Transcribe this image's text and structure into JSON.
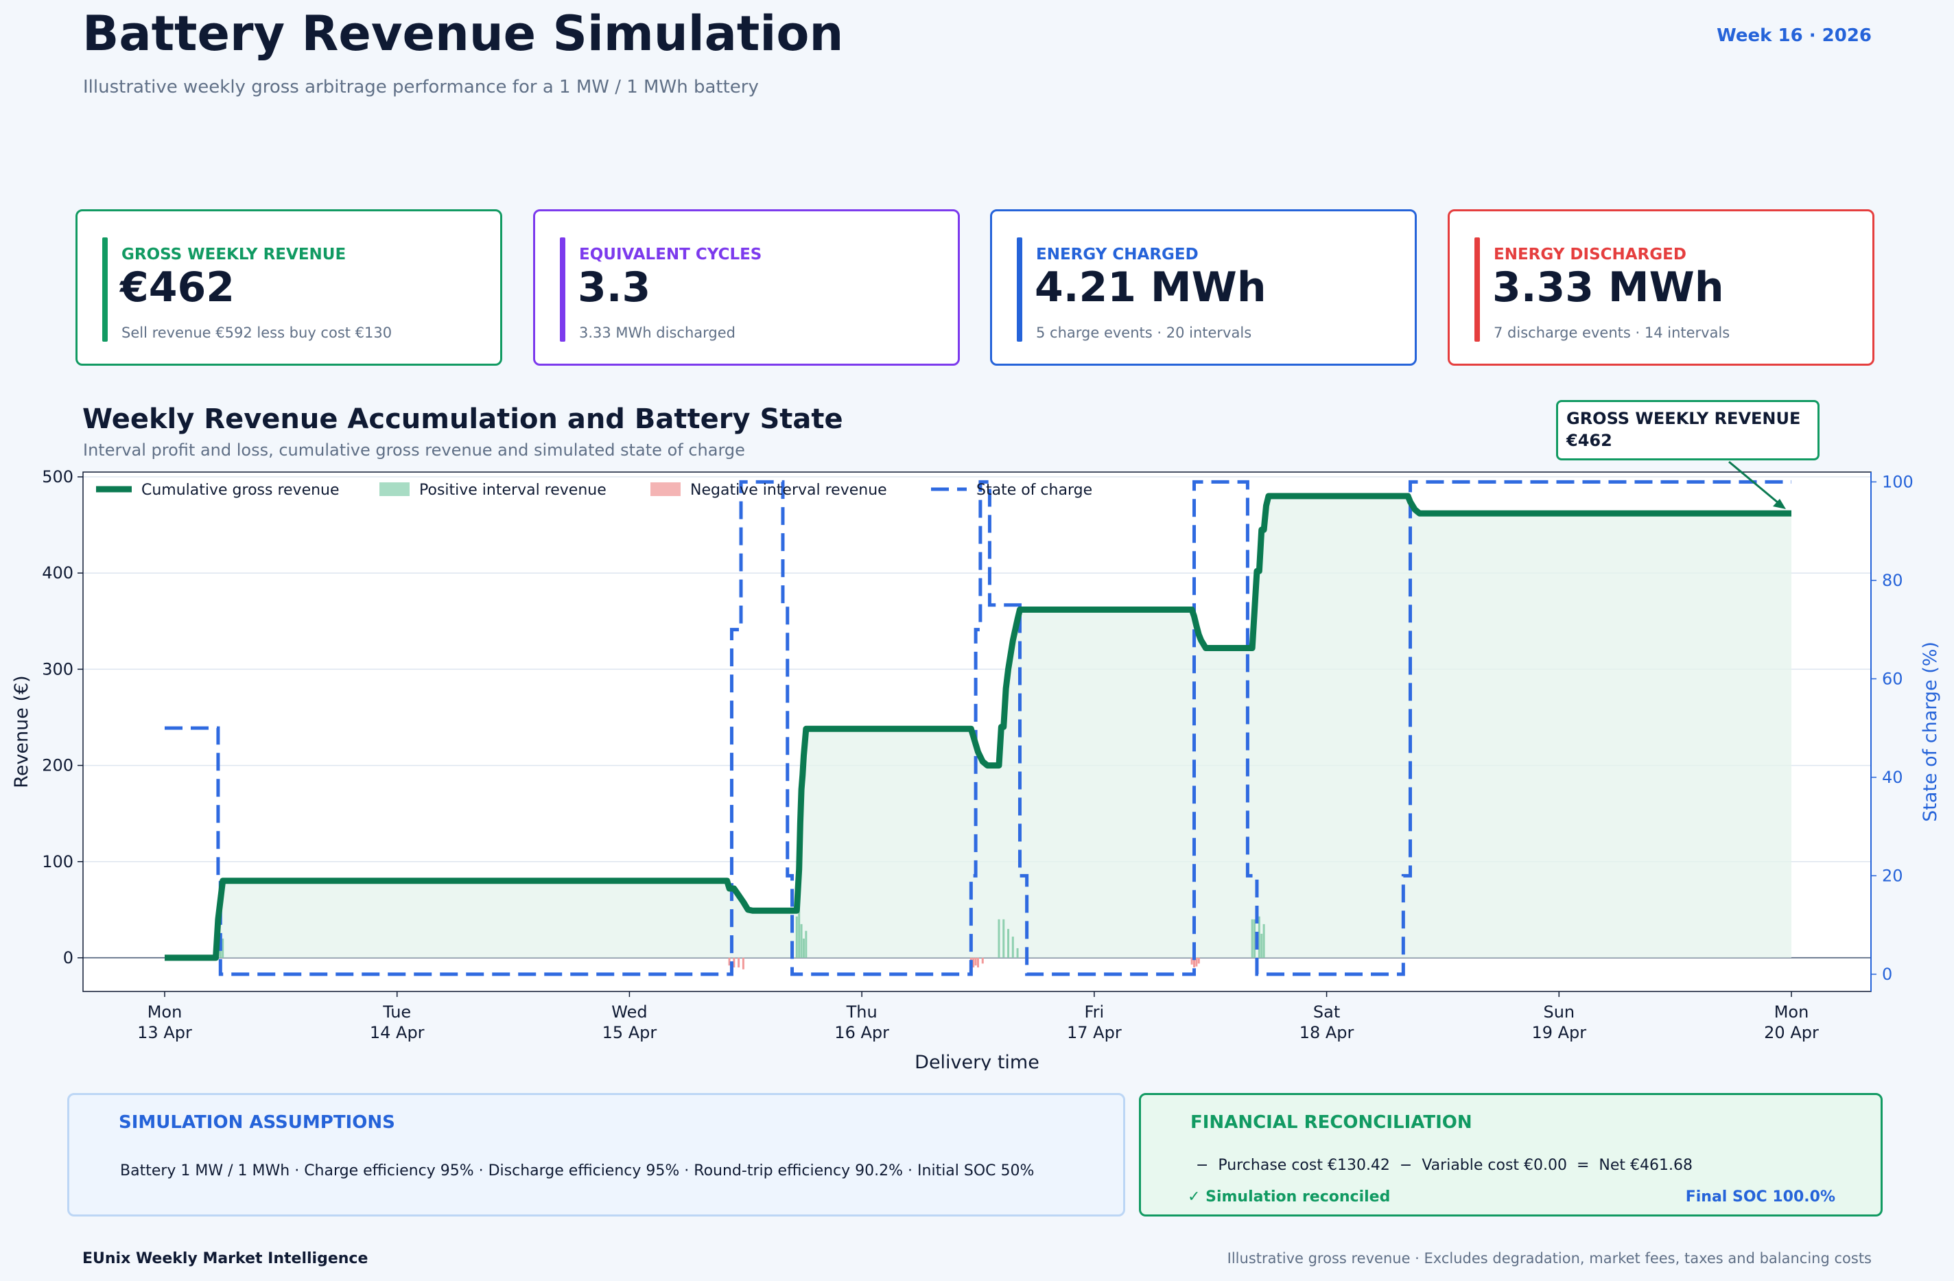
{
  "header": {
    "title": "Battery Revenue Simulation",
    "subtitle": "Illustrative weekly gross arbitrage performance for a 1 MW / 1 MWh battery",
    "week": "Week 16 · 2026"
  },
  "kpis": [
    {
      "label": "GROSS WEEKLY REVENUE",
      "value": "€462",
      "note": "Sell revenue €592 less buy cost €130",
      "color": "#119a62"
    },
    {
      "label": "EQUIVALENT CYCLES",
      "value": "3.3",
      "note": "3.33 MWh discharged",
      "color": "#7c3aed"
    },
    {
      "label": "ENERGY CHARGED",
      "value": "4.21 MWh",
      "note": "5 charge events · 20 intervals",
      "color": "#2563d9"
    },
    {
      "label": "ENERGY DISCHARGED",
      "value": "3.33 MWh",
      "note": "7 discharge events · 14 intervals",
      "color": "#e53e3e"
    }
  ],
  "section": {
    "title": "Weekly Revenue Accumulation and Battery State",
    "subtitle": "Interval profit and loss, cumulative gross revenue and simulated state of charge"
  },
  "callout": {
    "line1": "GROSS WEEKLY REVENUE",
    "line2": "€462"
  },
  "chart_data": {
    "type": "line",
    "xlabel": "Delivery time",
    "ylabel": "Revenue (€)",
    "y2label": "State of charge (%)",
    "x_ticks": [
      "Mon\n13 Apr",
      "Tue\n14 Apr",
      "Wed\n15 Apr",
      "Thu\n16 Apr",
      "Fri\n17 Apr",
      "Sat\n18 Apr",
      "Sun\n19 Apr",
      "Mon\n20 Apr"
    ],
    "xlim_days": [
      -0.35,
      7.35
    ],
    "ylim": [
      -35,
      505
    ],
    "y_ticks": [
      0,
      100,
      200,
      300,
      400,
      500
    ],
    "y2lim": [
      -3.5,
      102
    ],
    "y2_ticks": [
      0,
      20,
      40,
      60,
      80,
      100
    ],
    "legend": [
      "Cumulative gross revenue",
      "Positive interval revenue",
      "Negative interval revenue",
      "State of charge"
    ],
    "legend_position": "top-left",
    "grid": true,
    "colors": {
      "cumulative": "#0b7a51",
      "positive": "#a8dcc4",
      "negative": "#f4b4b4",
      "soc": "#2f6ae0",
      "fill": "#e4f3ec"
    },
    "series": [
      {
        "name": "Cumulative gross revenue",
        "x_days": [
          0,
          0.22,
          0.23,
          0.24,
          0.25,
          0.26,
          0.27,
          2.42,
          2.43,
          2.45,
          2.47,
          2.49,
          2.51,
          2.53,
          2.55,
          2.72,
          2.73,
          2.735,
          2.74,
          2.745,
          2.75,
          2.76,
          2.77,
          2.78,
          2.79,
          2.8,
          3.47,
          3.48,
          3.49,
          3.5,
          3.52,
          3.54,
          3.56,
          3.59,
          3.6,
          3.61,
          3.62,
          3.63,
          3.65,
          3.67,
          3.68,
          4.42,
          4.43,
          4.44,
          4.45,
          4.46,
          4.47,
          4.48,
          4.5,
          4.68,
          4.69,
          4.7,
          4.71,
          4.72,
          4.73,
          4.74,
          4.75,
          4.76,
          5.35,
          5.36,
          5.37,
          5.38,
          5.39,
          5.4,
          5.42,
          7.0
        ],
        "y": [
          0,
          0,
          40,
          60,
          80,
          80,
          80,
          80,
          72,
          72,
          65,
          58,
          50,
          49,
          49,
          49,
          92,
          140,
          175,
          190,
          210,
          238,
          238,
          238,
          238,
          238,
          238,
          230,
          222,
          214,
          204,
          200,
          200,
          200,
          240,
          240,
          280,
          300,
          330,
          352,
          362,
          362,
          355,
          345,
          336,
          330,
          326,
          322,
          322,
          322,
          362,
          402,
          402,
          445,
          445,
          470,
          480,
          480,
          480,
          474,
          470,
          466,
          464,
          462,
          462,
          462
        ]
      },
      {
        "name": "State of charge",
        "x_days": [
          0,
          0.23,
          0.23,
          0.24,
          0.24,
          2.42,
          2.42,
          2.44,
          2.44,
          2.48,
          2.48,
          2.5,
          2.5,
          2.66,
          2.66,
          2.68,
          2.68,
          2.7,
          2.7,
          2.74,
          2.74,
          3.47,
          3.47,
          3.49,
          3.49,
          3.51,
          3.51,
          3.55,
          3.55,
          3.68,
          3.68,
          3.71,
          3.71,
          3.74,
          3.74,
          4.43,
          4.43,
          4.47,
          4.47,
          4.66,
          4.66,
          4.7,
          4.7,
          4.72,
          4.72,
          5.33,
          5.33,
          5.36,
          5.36,
          7.0
        ],
        "y": [
          50,
          50,
          20,
          20,
          0,
          0,
          0,
          0,
          70,
          70,
          100,
          100,
          100,
          100,
          75,
          75,
          20,
          20,
          0,
          0,
          0,
          0,
          20,
          20,
          70,
          70,
          100,
          100,
          75,
          75,
          20,
          20,
          0,
          0,
          0,
          0,
          100,
          100,
          100,
          100,
          20,
          20,
          0,
          0,
          0,
          0,
          20,
          20,
          100,
          100
        ]
      },
      {
        "name": "Positive interval revenue",
        "bars": [
          [
            0.23,
            40
          ],
          [
            0.24,
            20
          ],
          [
            0.25,
            20
          ],
          [
            2.72,
            43
          ],
          [
            2.73,
            48
          ],
          [
            2.74,
            35
          ],
          [
            2.75,
            20
          ],
          [
            2.76,
            28
          ],
          [
            3.59,
            40
          ],
          [
            3.61,
            40
          ],
          [
            3.63,
            30
          ],
          [
            3.65,
            22
          ],
          [
            3.67,
            10
          ],
          [
            4.68,
            40
          ],
          [
            4.69,
            40
          ],
          [
            4.71,
            43
          ],
          [
            4.72,
            25
          ],
          [
            4.73,
            35
          ]
        ]
      },
      {
        "name": "Negative interval revenue",
        "bars": [
          [
            2.43,
            -8
          ],
          [
            2.45,
            -10
          ],
          [
            2.47,
            -10
          ],
          [
            2.49,
            -12
          ],
          [
            3.47,
            -8
          ],
          [
            3.48,
            -10
          ],
          [
            3.49,
            -8
          ],
          [
            3.5,
            -10
          ],
          [
            3.52,
            -6
          ],
          [
            4.42,
            -7
          ],
          [
            4.43,
            -10
          ],
          [
            4.44,
            -9
          ],
          [
            4.45,
            -6
          ]
        ]
      }
    ]
  },
  "assumptions": {
    "title": "SIMULATION ASSUMPTIONS",
    "text": "Battery 1 MW / 1 MWh   ·   Charge efficiency 95%   ·   Discharge efficiency 95%   ·   Round-trip efficiency 90.2%   ·   Initial SOC 50%"
  },
  "reconciliation": {
    "title": "FINANCIAL RECONCILIATION",
    "line": "−  Purchase cost €130.42  −  Variable cost €0.00  =  Net €461.68",
    "status": "✓ Simulation reconciled",
    "final_soc": "Final SOC 100.0%"
  },
  "footer": {
    "left": "EUnix Weekly Market Intelligence",
    "right": "Illustrative gross revenue · Excludes degradation, market fees, taxes and balancing costs"
  }
}
